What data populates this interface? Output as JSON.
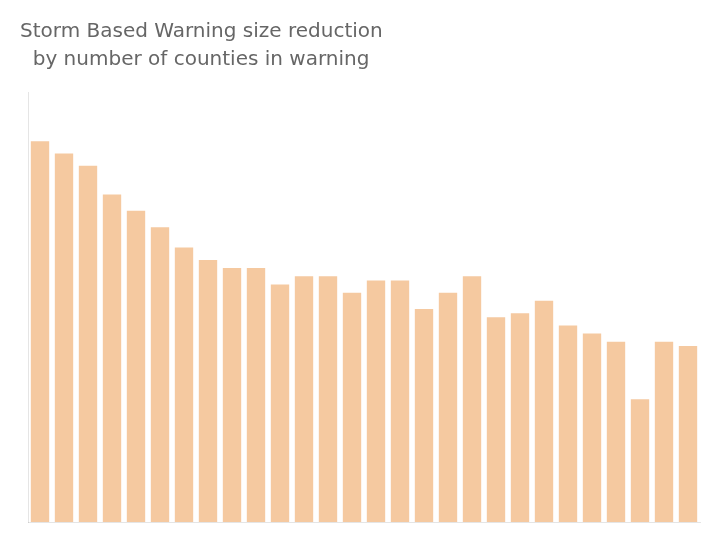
{
  "chart_data": {
    "type": "bar",
    "title": "Storm Based Warning size reduction",
    "subtitle": "  by number of counties in warning",
    "categories": [
      null,
      null,
      null,
      null,
      null,
      null,
      null,
      null,
      null,
      null,
      null,
      null,
      null,
      null,
      null,
      null,
      null,
      null,
      null,
      null,
      null,
      null,
      null,
      null,
      null,
      null,
      null,
      null
    ],
    "values": [
      93,
      90,
      87,
      80,
      76,
      72,
      67,
      64,
      62,
      62,
      58,
      60,
      60,
      56,
      59,
      59,
      52,
      56,
      60,
      50,
      51,
      54,
      48,
      46,
      44,
      30,
      44,
      43
    ],
    "color": "#f5c9a0",
    "ylim": [
      0,
      105
    ],
    "yticks": [],
    "grid": false,
    "tick_labels": false
  }
}
